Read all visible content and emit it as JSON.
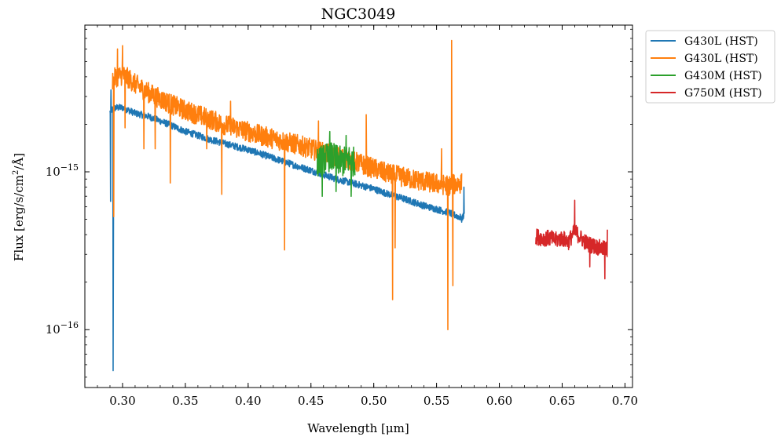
{
  "chart_data": {
    "type": "line",
    "title": "NGC3049",
    "xlabel": "Wavelength [μm]",
    "ylabel_main": "Flux [erg/s/cm",
    "ylabel_sup": "2",
    "ylabel_tail": "/Å]",
    "xlim": [
      0.27,
      0.706
    ],
    "ylim": [
      4.3e-17,
      8.5e-15
    ],
    "yscale": "log",
    "xticks": [
      0.3,
      0.35,
      0.4,
      0.45,
      0.5,
      0.55,
      0.6,
      0.65,
      0.7
    ],
    "xtick_labels": [
      "0.30",
      "0.35",
      "0.40",
      "0.45",
      "0.50",
      "0.55",
      "0.60",
      "0.65",
      "0.70"
    ],
    "yticks": [
      {
        "value": 1e-15,
        "base": "10",
        "exp": "−15"
      },
      {
        "value": 1e-16,
        "base": "10",
        "exp": "−16"
      }
    ],
    "legend_position": "outside-top-right",
    "series": [
      {
        "name": "G430L (HST)",
        "color": "#1f77b4",
        "x": [
          0.29,
          0.292,
          0.295,
          0.3,
          0.305,
          0.31,
          0.32,
          0.33,
          0.34,
          0.35,
          0.36,
          0.37,
          0.38,
          0.39,
          0.4,
          0.41,
          0.42,
          0.43,
          0.44,
          0.45,
          0.46,
          0.47,
          0.48,
          0.49,
          0.5,
          0.51,
          0.52,
          0.53,
          0.54,
          0.55,
          0.56,
          0.57,
          0.572
        ],
        "y": [
          2.4e-15,
          2.5e-15,
          2.55e-15,
          2.55e-15,
          2.45e-15,
          2.35e-15,
          2.25e-15,
          2.1e-15,
          1.95e-15,
          1.8e-15,
          1.7e-15,
          1.6e-15,
          1.52e-15,
          1.45e-15,
          1.38e-15,
          1.3e-15,
          1.22e-15,
          1.15e-15,
          1.08e-15,
          1.02e-15,
          9.6e-16,
          9e-16,
          8.6e-16,
          8.2e-16,
          7.8e-16,
          7.3e-16,
          6.9e-16,
          6.5e-16,
          6.1e-16,
          5.8e-16,
          5.5e-16,
          5.1e-16,
          5.3e-16
        ],
        "noise": 0.05,
        "spikes": [
          {
            "x": 0.2905,
            "y": 6.5e-16
          },
          {
            "x": 0.2908,
            "y": 3.3e-15
          },
          {
            "x": 0.2925,
            "y": 5.5e-17
          },
          {
            "x": 0.2928,
            "y": 5e-16
          },
          {
            "x": 0.459,
            "y": 9e-16
          },
          {
            "x": 0.57,
            "y": 4.8e-16
          },
          {
            "x": 0.5718,
            "y": 8e-16
          }
        ]
      },
      {
        "name": "G430L (HST)",
        "color": "#ff7f0e",
        "x": [
          0.292,
          0.295,
          0.3,
          0.305,
          0.31,
          0.32,
          0.33,
          0.34,
          0.35,
          0.36,
          0.37,
          0.38,
          0.39,
          0.4,
          0.41,
          0.42,
          0.43,
          0.44,
          0.45,
          0.46,
          0.47,
          0.48,
          0.49,
          0.5,
          0.51,
          0.52,
          0.53,
          0.54,
          0.55,
          0.56,
          0.57
        ],
        "y": [
          3.8e-15,
          4e-15,
          4.1e-15,
          3.9e-15,
          3.6e-15,
          3.2e-15,
          2.9e-15,
          2.65e-15,
          2.45e-15,
          2.3e-15,
          2.15e-15,
          2e-15,
          1.9e-15,
          1.8e-15,
          1.7e-15,
          1.62e-15,
          1.55e-15,
          1.48e-15,
          1.4e-15,
          1.32e-15,
          1.25e-15,
          1.2e-15,
          1.12e-15,
          1.05e-15,
          9.8e-16,
          9.4e-16,
          9e-16,
          8.7e-16,
          8.4e-16,
          8.2e-16,
          8.5e-16
        ],
        "noise": 0.15,
        "spikes": [
          {
            "x": 0.293,
            "y": 5.2e-16
          },
          {
            "x": 0.296,
            "y": 6e-15
          },
          {
            "x": 0.3,
            "y": 6.3e-15
          },
          {
            "x": 0.302,
            "y": 1.9e-15
          },
          {
            "x": 0.317,
            "y": 1.4e-15
          },
          {
            "x": 0.326,
            "y": 1.4e-15
          },
          {
            "x": 0.338,
            "y": 8.5e-16
          },
          {
            "x": 0.367,
            "y": 1.4e-15
          },
          {
            "x": 0.379,
            "y": 7.2e-16
          },
          {
            "x": 0.386,
            "y": 2.8e-15
          },
          {
            "x": 0.429,
            "y": 3.2e-16
          },
          {
            "x": 0.456,
            "y": 2.1e-15
          },
          {
            "x": 0.485,
            "y": 1e-15
          },
          {
            "x": 0.494,
            "y": 2.3e-15
          },
          {
            "x": 0.515,
            "y": 1.55e-16
          },
          {
            "x": 0.517,
            "y": 3.3e-16
          },
          {
            "x": 0.554,
            "y": 1.4e-15
          },
          {
            "x": 0.559,
            "y": 1e-16
          },
          {
            "x": 0.562,
            "y": 6.8e-15
          },
          {
            "x": 0.563,
            "y": 1.9e-16
          }
        ]
      },
      {
        "name": "G430M (HST)",
        "color": "#2ca02c",
        "x": [
          0.455,
          0.46,
          0.465,
          0.47,
          0.475,
          0.48,
          0.485
        ],
        "y": [
          1.15e-15,
          1.2e-15,
          1.25e-15,
          1.2e-15,
          1.15e-15,
          1.2e-15,
          1.15e-15
        ],
        "noise": 0.22,
        "spikes": [
          {
            "x": 0.459,
            "y": 7e-16
          },
          {
            "x": 0.465,
            "y": 1.8e-15
          },
          {
            "x": 0.47,
            "y": 7.5e-16
          },
          {
            "x": 0.478,
            "y": 1.7e-15
          },
          {
            "x": 0.482,
            "y": 7e-16
          }
        ]
      },
      {
        "name": "G750M (HST)",
        "color": "#d62728",
        "x": [
          0.629,
          0.635,
          0.64,
          0.645,
          0.65,
          0.655,
          0.66,
          0.665,
          0.67,
          0.675,
          0.68,
          0.686
        ],
        "y": [
          3.9e-16,
          3.8e-16,
          3.8e-16,
          3.7e-16,
          3.8e-16,
          3.6e-16,
          4.2e-16,
          3.8e-16,
          3.5e-16,
          3.4e-16,
          3.3e-16,
          3.2e-16
        ],
        "noise": 0.12,
        "spikes": [
          {
            "x": 0.66,
            "y": 6.6e-16
          },
          {
            "x": 0.672,
            "y": 2.5e-16
          },
          {
            "x": 0.684,
            "y": 2.1e-16
          },
          {
            "x": 0.686,
            "y": 4.3e-16
          }
        ]
      }
    ]
  }
}
